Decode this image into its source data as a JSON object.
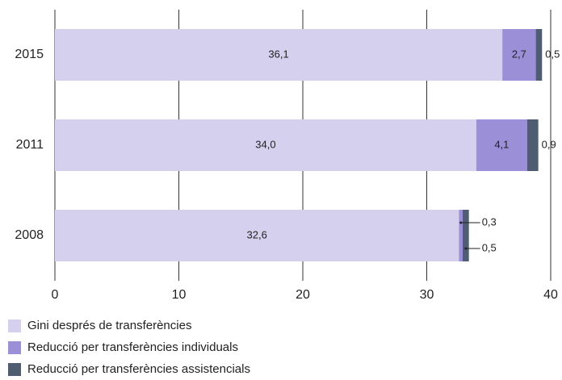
{
  "chart_data": {
    "type": "bar",
    "orientation": "horizontal",
    "stacked": true,
    "categories": [
      "2015",
      "2011",
      "2008"
    ],
    "series": [
      {
        "name": "Gini després de transferències",
        "color": "#d4d0ee",
        "values": [
          36.1,
          34.0,
          32.6
        ],
        "value_labels": [
          "36,1",
          "34,0",
          "32,6"
        ]
      },
      {
        "name": "Reducció per transferències individuals",
        "color": "#9b8fd8",
        "values": [
          2.7,
          4.1,
          0.3
        ],
        "value_labels": [
          "2,7",
          "4,1",
          "0,3"
        ]
      },
      {
        "name": "Reducció per transferències assistencials",
        "color": "#4f5d70",
        "values": [
          0.5,
          0.9,
          0.5
        ],
        "value_labels": [
          "0,5",
          "0,9",
          "0,5"
        ]
      }
    ],
    "xlim": [
      0,
      40
    ],
    "xticks": [
      0,
      10,
      20,
      30,
      40
    ],
    "grid": true,
    "legend": "bottom"
  }
}
